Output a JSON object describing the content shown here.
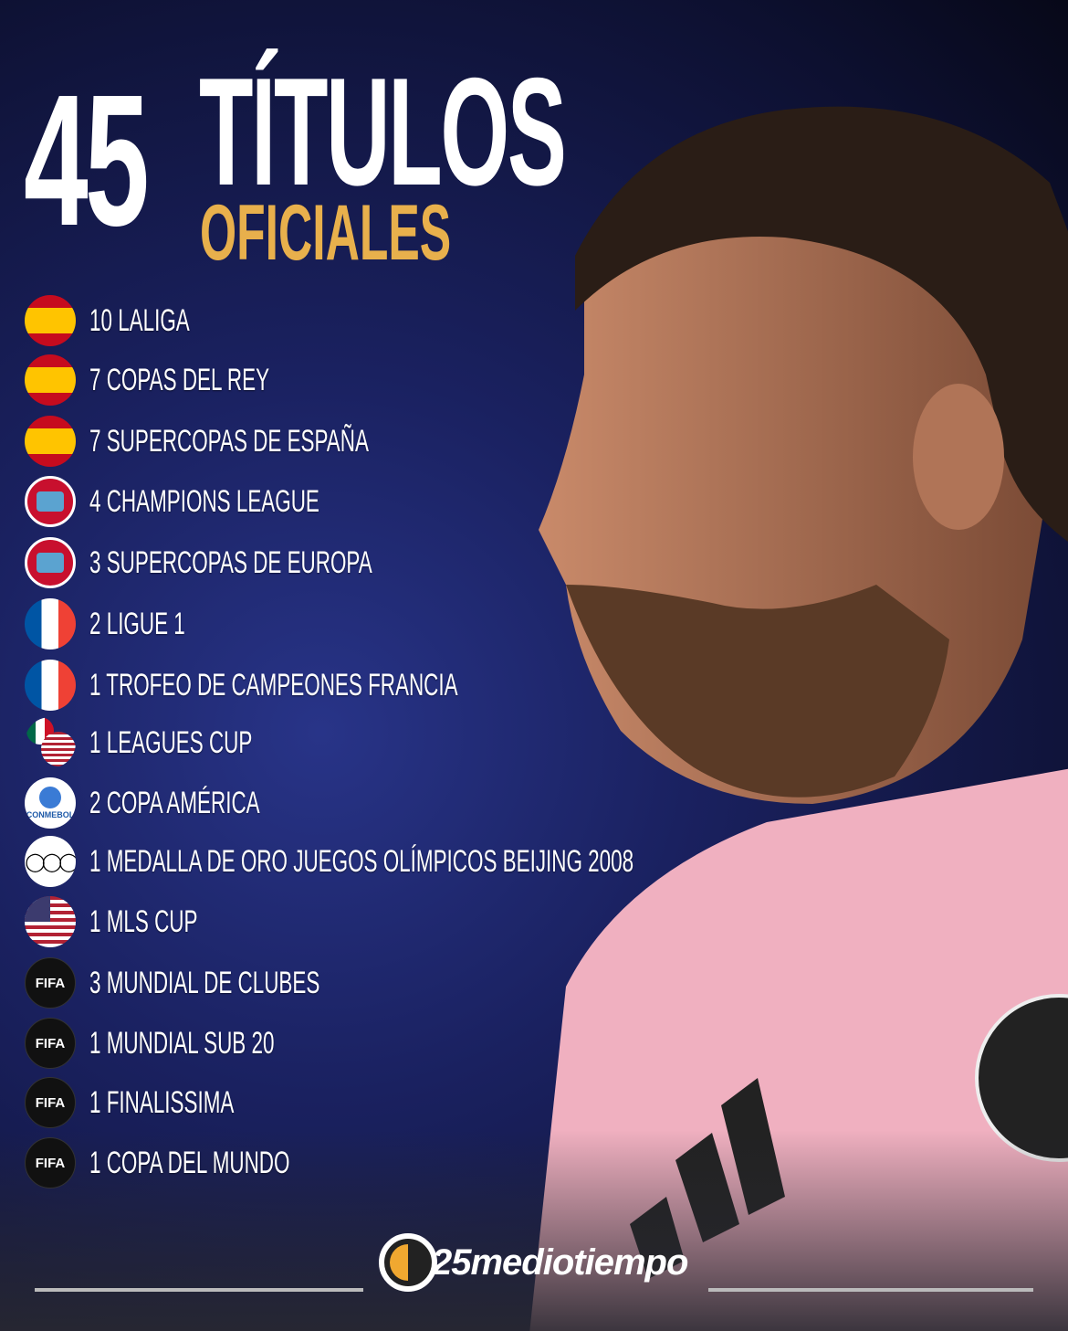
{
  "headline": {
    "number": "45",
    "word": "TÍTULOS",
    "subtitle": "OFICIALES"
  },
  "colors": {
    "accent": "#e8b04c",
    "background": "#1a2160",
    "shirt": "#f2b3c3"
  },
  "titles": [
    {
      "icon": "spain-flag-icon",
      "label": "10 LALIGA"
    },
    {
      "icon": "spain-flag-icon",
      "label": "7 COPAS DEL REY"
    },
    {
      "icon": "spain-flag-icon",
      "label": "7 SUPERCOPAS DE ESPAÑA"
    },
    {
      "icon": "uefa-icon",
      "label": "4 CHAMPIONS LEAGUE"
    },
    {
      "icon": "uefa-icon",
      "label": "3 SUPERCOPAS DE EUROPA"
    },
    {
      "icon": "france-flag-icon",
      "label": "2 LIGUE 1"
    },
    {
      "icon": "france-flag-icon",
      "label": "1 TROFEO DE CAMPEONES FRANCIA"
    },
    {
      "icon": "mexico-usa-flags-icon",
      "label": "1 LEAGUES CUP"
    },
    {
      "icon": "conmebol-icon",
      "label": "2 COPA AMÉRICA",
      "icon_text": "CONMEBOL"
    },
    {
      "icon": "olympic-rings-icon",
      "label": "1 MEDALLA DE ORO JUEGOS OLÍMPICOS BEIJING 2008"
    },
    {
      "icon": "usa-flag-icon",
      "label": "1 MLS CUP"
    },
    {
      "icon": "fifa-icon",
      "label": "3 MUNDIAL DE CLUBES",
      "icon_text": "FIFA"
    },
    {
      "icon": "fifa-icon",
      "label": "1 MUNDIAL SUB 20",
      "icon_text": "FIFA"
    },
    {
      "icon": "fifa-icon",
      "label": "1 FINALISSIMA",
      "icon_text": "FIFA"
    },
    {
      "icon": "fifa-icon",
      "label": "1 COPA DEL MUNDO",
      "icon_text": "FIFA"
    }
  ],
  "brand": {
    "name": "25mediotiempo"
  }
}
